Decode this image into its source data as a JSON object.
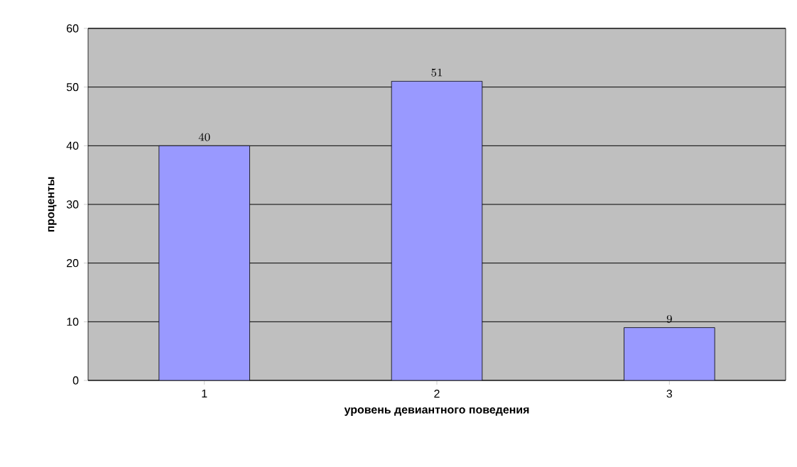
{
  "chart_data": {
    "type": "bar",
    "xlabel": "уровень девиантного поведения",
    "ylabel": "проценты",
    "categories": [
      "1",
      "2",
      "3"
    ],
    "values": [
      40,
      51,
      9
    ],
    "color": "#9999ff",
    "ylim": [
      0,
      60
    ],
    "yticks": [
      0,
      10,
      20,
      30,
      40,
      50,
      60
    ],
    "grid": "y",
    "data_labels": true
  }
}
